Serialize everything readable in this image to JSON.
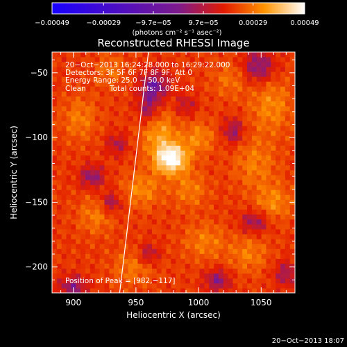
{
  "chart_data": {
    "type": "heatmap",
    "title": "Reconstructed RHESSI Image",
    "xlabel": "Heliocentric X (arcsec)",
    "ylabel": "Heliocentric Y (arcsec)",
    "x_ticks": [
      900,
      950,
      1000,
      1050
    ],
    "y_ticks": [
      -50,
      -100,
      -150,
      -200
    ],
    "x_tick_labels": [
      "900",
      "950",
      "1000",
      "1050"
    ],
    "y_tick_labels": [
      "−50",
      "−100",
      "−150",
      "−200"
    ],
    "xlim": [
      883,
      1077
    ],
    "ylim": [
      -220,
      -34
    ],
    "colormap": [
      "#1800ff",
      "#7d1a8c",
      "#e21b00",
      "#ff9400",
      "#ffffff"
    ],
    "colorbar": {
      "range": [
        -0.00049,
        0.00049
      ],
      "tick_labels": [
        "−0.00049",
        "−0.00029",
        "−9.7e−05",
        "9.7e−05",
        "0.00029",
        "0.00049"
      ],
      "unit": "(photons cm⁻² s⁻¹ asec⁻²)"
    },
    "annotations": [
      "20−Oct−2013 16:24:28.000 to 16:29:22.000",
      "Detectors: 3F 5F 6F 7F 8F 9F, Att 0",
      "Energy Range: 25.0 − 50.0 keV",
      "Clean",
      "Total counts: 1.09E+04"
    ],
    "peak_label": "Position of Peak = [982,−117]",
    "peak": {
      "x": 982,
      "y": -117
    },
    "limb_line": [
      [
        960,
        -34
      ],
      [
        937,
        -220
      ]
    ],
    "footer": "20−Oct−2013 18:07",
    "blobs": [
      {
        "x": 978,
        "y": -116,
        "sx": 9,
        "sy": 8,
        "a": 1.05
      },
      {
        "x": 968,
        "y": -96,
        "sx": 10,
        "sy": 12,
        "a": 0.45
      },
      {
        "x": 1000,
        "y": -100,
        "sx": 9,
        "sy": 9,
        "a": 0.35
      },
      {
        "x": 955,
        "y": -140,
        "sx": 11,
        "sy": 10,
        "a": 0.35
      },
      {
        "x": 993,
        "y": -140,
        "sx": 10,
        "sy": 10,
        "a": 0.3
      },
      {
        "x": 1058,
        "y": -75,
        "sx": 12,
        "sy": 15,
        "a": 0.35
      },
      {
        "x": 1045,
        "y": -120,
        "sx": 12,
        "sy": 14,
        "a": 0.3
      },
      {
        "x": 1060,
        "y": -150,
        "sx": 10,
        "sy": 10,
        "a": 0.35
      },
      {
        "x": 918,
        "y": -160,
        "sx": 10,
        "sy": 10,
        "a": 0.3
      },
      {
        "x": 905,
        "y": -85,
        "sx": 10,
        "sy": 12,
        "a": 0.3
      },
      {
        "x": 1005,
        "y": -180,
        "sx": 12,
        "sy": 10,
        "a": 0.3
      },
      {
        "x": 948,
        "y": -200,
        "sx": 12,
        "sy": 10,
        "a": 0.28
      },
      {
        "x": 1040,
        "y": -190,
        "sx": 11,
        "sy": 10,
        "a": 0.3
      },
      {
        "x": 1025,
        "y": -55,
        "sx": 10,
        "sy": 10,
        "a": 0.25
      },
      {
        "x": 930,
        "y": -48,
        "sx": 9,
        "sy": 9,
        "a": 0.25
      },
      {
        "x": 965,
        "y": -60,
        "sx": 8,
        "sy": 8,
        "a": -0.6
      },
      {
        "x": 1048,
        "y": -45,
        "sx": 9,
        "sy": 9,
        "a": -0.55
      },
      {
        "x": 960,
        "y": -78,
        "sx": 6,
        "sy": 9,
        "a": -0.45
      },
      {
        "x": 1028,
        "y": -95,
        "sx": 6,
        "sy": 7,
        "a": -0.45
      },
      {
        "x": 915,
        "y": -130,
        "sx": 7,
        "sy": 6,
        "a": -0.5
      },
      {
        "x": 930,
        "y": -150,
        "sx": 6,
        "sy": 6,
        "a": -0.45
      },
      {
        "x": 1045,
        "y": -165,
        "sx": 8,
        "sy": 6,
        "a": -0.45
      },
      {
        "x": 1015,
        "y": -210,
        "sx": 7,
        "sy": 6,
        "a": -0.5
      },
      {
        "x": 900,
        "y": -215,
        "sx": 8,
        "sy": 6,
        "a": -0.5
      },
      {
        "x": 960,
        "y": -190,
        "sx": 6,
        "sy": 6,
        "a": -0.4
      },
      {
        "x": 935,
        "y": -105,
        "sx": 6,
        "sy": 6,
        "a": -0.35
      },
      {
        "x": 1070,
        "y": -205,
        "sx": 7,
        "sy": 7,
        "a": -0.4
      },
      {
        "x": 990,
        "y": -75,
        "sx": 6,
        "sy": 6,
        "a": -0.3
      }
    ]
  }
}
